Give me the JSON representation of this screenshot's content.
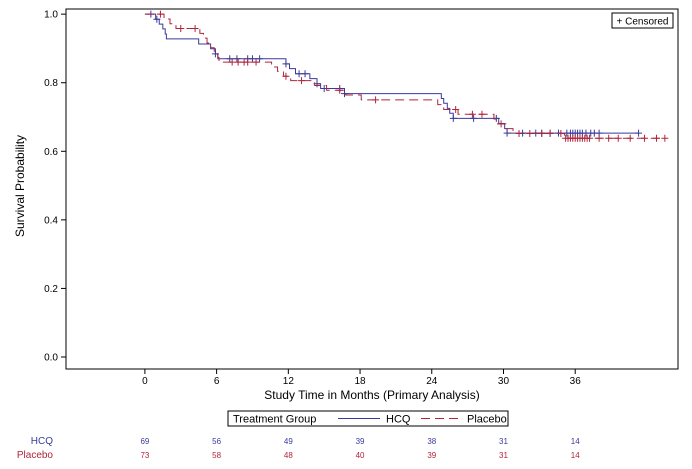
{
  "chart_data": {
    "type": "line",
    "xlabel": "Study Time in Months (Primary Analysis)",
    "ylabel": "Survival Probability",
    "xlim": [
      -6.6,
      44.6
    ],
    "ylim": [
      -0.035,
      1.015
    ],
    "x_ticks": [
      0,
      6,
      12,
      18,
      24,
      30,
      36
    ],
    "y_ticks": [
      0.0,
      0.2,
      0.4,
      0.6,
      0.8,
      1.0
    ],
    "x_tick_labels": [
      "0",
      "6",
      "12",
      "18",
      "24",
      "30",
      "36"
    ],
    "y_tick_labels": [
      "0.0",
      "0.2",
      "0.4",
      "0.6",
      "0.8",
      "1.0"
    ],
    "censored_legend": "+ Censored",
    "legend": {
      "title": "Treatment Group",
      "position": "bottom",
      "entries": [
        "HCQ",
        "Placebo"
      ]
    },
    "colors": {
      "HCQ": "#3a3a9c",
      "Placebo": "#b0253a"
    },
    "series": [
      {
        "name": "HCQ",
        "style": "solid",
        "steps": [
          [
            0,
            1.0
          ],
          [
            0.9,
            0.985
          ],
          [
            1.2,
            0.971
          ],
          [
            1.5,
            0.957
          ],
          [
            1.7,
            0.942
          ],
          [
            1.8,
            0.928
          ],
          [
            4.5,
            0.913
          ],
          [
            5.5,
            0.899
          ],
          [
            5.9,
            0.884
          ],
          [
            6.1,
            0.87
          ],
          [
            11.8,
            0.855
          ],
          [
            12.1,
            0.841
          ],
          [
            12.6,
            0.826
          ],
          [
            13.8,
            0.812
          ],
          [
            14.4,
            0.797
          ],
          [
            14.7,
            0.783
          ],
          [
            16.7,
            0.768
          ],
          [
            24.8,
            0.754
          ],
          [
            25.0,
            0.74
          ],
          [
            25.3,
            0.725
          ],
          [
            25.5,
            0.711
          ],
          [
            25.8,
            0.696
          ],
          [
            29.6,
            0.681
          ],
          [
            30.1,
            0.666
          ],
          [
            30.3,
            0.653
          ]
        ],
        "end": 41.3,
        "censored": [
          0.5,
          1.0,
          5.9,
          7.1,
          7.7,
          8.6,
          9.0,
          9.6,
          11.8,
          12.9,
          13.4,
          14.4,
          15.0,
          16.3,
          16.7,
          25.8,
          27.5,
          29.4,
          30.3,
          31.6,
          32.7,
          33.2,
          33.9,
          34.6,
          35.3,
          35.6,
          35.8,
          36.0,
          36.2,
          36.4,
          36.6,
          36.9,
          37.3,
          37.6,
          38.0,
          41.3
        ]
      },
      {
        "name": "Placebo",
        "style": "dashed",
        "steps": [
          [
            0,
            1.0
          ],
          [
            1.6,
            0.986
          ],
          [
            2.1,
            0.972
          ],
          [
            2.6,
            0.958
          ],
          [
            4.6,
            0.944
          ],
          [
            4.9,
            0.93
          ],
          [
            5.2,
            0.916
          ],
          [
            5.5,
            0.902
          ],
          [
            5.8,
            0.888
          ],
          [
            6.1,
            0.874
          ],
          [
            6.2,
            0.86
          ],
          [
            10.6,
            0.846
          ],
          [
            11.1,
            0.833
          ],
          [
            11.6,
            0.819
          ],
          [
            12.2,
            0.806
          ],
          [
            14.2,
            0.792
          ],
          [
            15.2,
            0.778
          ],
          [
            16.8,
            0.764
          ],
          [
            18.1,
            0.75
          ],
          [
            24.5,
            0.736
          ],
          [
            25.0,
            0.722
          ],
          [
            26.2,
            0.708
          ],
          [
            29.2,
            0.694
          ],
          [
            29.5,
            0.68
          ],
          [
            30.2,
            0.666
          ],
          [
            30.8,
            0.652
          ],
          [
            35.1,
            0.638
          ]
        ],
        "end": 43.5,
        "censored": [
          1.3,
          3.0,
          4.2,
          7.3,
          7.8,
          8.3,
          8.6,
          9.3,
          11.8,
          13.1,
          16.3,
          19.3,
          26.0,
          27.4,
          28.2,
          29.8,
          31.3,
          32.2,
          33.2,
          33.9,
          34.8,
          35.2,
          35.4,
          35.6,
          35.8,
          36.0,
          36.2,
          36.4,
          36.6,
          36.8,
          37.0,
          37.2,
          38.0,
          38.8,
          39.6,
          40.6,
          41.8,
          42.8,
          43.5
        ]
      }
    ],
    "risk_table": {
      "times": [
        0,
        6,
        12,
        18,
        24,
        30,
        36
      ],
      "rows": [
        {
          "label": "HCQ",
          "values": [
            "69",
            "56",
            "49",
            "39",
            "38",
            "31",
            "14"
          ]
        },
        {
          "label": "Placebo",
          "values": [
            "73",
            "58",
            "48",
            "40",
            "39",
            "31",
            "14"
          ]
        }
      ]
    }
  }
}
